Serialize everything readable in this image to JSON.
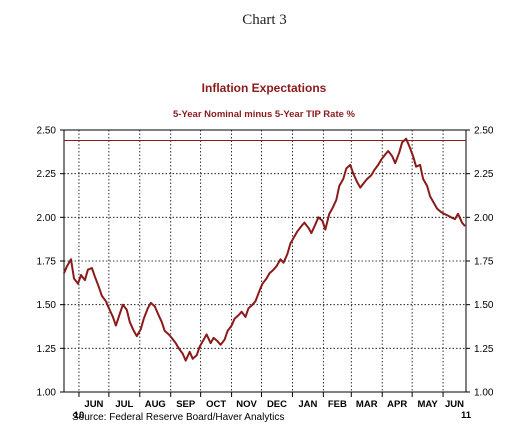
{
  "page": {
    "title": "Chart 3"
  },
  "chart_data": {
    "type": "line",
    "title": "Inflation Expectations",
    "subtitle": "5-Year Nominal minus 5-Year TIP Rate    %",
    "source": "Source:  Federal Reserve Board/Haver Analytics",
    "xlabel": "",
    "ylabel": "",
    "ylim": [
      1.0,
      2.5
    ],
    "yticks": [
      "2.50",
      "2.25",
      "2.00",
      "1.75",
      "1.50",
      "1.25",
      "1.00"
    ],
    "ytick_values": [
      2.5,
      2.25,
      2.0,
      1.75,
      1.5,
      1.25,
      1.0
    ],
    "xrange": [
      "2010-05-17",
      "2011-06-24"
    ],
    "months": [
      "JUN",
      "JUL",
      "AUG",
      "SEP",
      "OCT",
      "NOV",
      "DEC",
      "JAN",
      "FEB",
      "MAR",
      "APR",
      "MAY",
      "JUN"
    ],
    "month_starts": [
      "2010-06-01",
      "2010-07-01",
      "2010-08-01",
      "2010-09-01",
      "2010-10-01",
      "2010-11-01",
      "2010-12-01",
      "2011-01-01",
      "2011-02-01",
      "2011-03-01",
      "2011-04-01",
      "2011-05-01",
      "2011-06-01"
    ],
    "year_labels": [
      {
        "label": "10",
        "date": "2010-06-01"
      },
      {
        "label": "11",
        "date": "2011-06-30"
      }
    ],
    "reference_line": {
      "value": 2.44,
      "color": "#8b1a1a"
    },
    "grid": true,
    "colors": {
      "series": "#8b1a1a"
    },
    "series": [
      {
        "x": [
          "2010-05-17",
          "2010-05-20",
          "2010-05-24",
          "2010-05-27",
          "2010-05-31",
          "2010-06-03",
          "2010-06-07",
          "2010-06-10",
          "2010-06-14",
          "2010-06-17",
          "2010-06-21",
          "2010-06-24",
          "2010-06-28",
          "2010-07-01",
          "2010-07-05",
          "2010-07-08",
          "2010-07-12",
          "2010-07-15",
          "2010-07-19",
          "2010-07-22",
          "2010-07-26",
          "2010-07-29",
          "2010-08-02",
          "2010-08-05",
          "2010-08-09",
          "2010-08-12",
          "2010-08-16",
          "2010-08-19",
          "2010-08-23",
          "2010-08-26",
          "2010-08-30",
          "2010-09-02",
          "2010-09-06",
          "2010-09-09",
          "2010-09-13",
          "2010-09-16",
          "2010-09-20",
          "2010-09-23",
          "2010-09-27",
          "2010-09-30",
          "2010-10-04",
          "2010-10-07",
          "2010-10-11",
          "2010-10-14",
          "2010-10-18",
          "2010-10-21",
          "2010-10-25",
          "2010-10-28",
          "2010-11-01",
          "2010-11-04",
          "2010-11-08",
          "2010-11-11",
          "2010-11-15",
          "2010-11-18",
          "2010-11-22",
          "2010-11-25",
          "2010-11-29",
          "2010-12-02",
          "2010-12-06",
          "2010-12-09",
          "2010-12-13",
          "2010-12-16",
          "2010-12-20",
          "2010-12-23",
          "2010-12-27",
          "2010-12-30",
          "2011-01-03",
          "2011-01-06",
          "2011-01-10",
          "2011-01-13",
          "2011-01-17",
          "2011-01-20",
          "2011-01-24",
          "2011-01-27",
          "2011-01-31",
          "2011-02-03",
          "2011-02-07",
          "2011-02-10",
          "2011-02-14",
          "2011-02-17",
          "2011-02-21",
          "2011-02-24",
          "2011-02-28",
          "2011-03-03",
          "2011-03-07",
          "2011-03-10",
          "2011-03-14",
          "2011-03-17",
          "2011-03-21",
          "2011-03-24",
          "2011-03-28",
          "2011-03-31",
          "2011-04-04",
          "2011-04-07",
          "2011-04-11",
          "2011-04-14",
          "2011-04-18",
          "2011-04-21",
          "2011-04-25",
          "2011-04-28",
          "2011-05-02",
          "2011-05-05",
          "2011-05-09",
          "2011-05-12",
          "2011-05-16",
          "2011-05-19",
          "2011-05-23",
          "2011-05-26",
          "2011-05-30",
          "2011-06-02",
          "2011-06-06",
          "2011-06-09",
          "2011-06-13",
          "2011-06-16",
          "2011-06-20",
          "2011-06-23"
        ],
        "y": [
          1.68,
          1.72,
          1.76,
          1.65,
          1.62,
          1.67,
          1.64,
          1.7,
          1.71,
          1.66,
          1.6,
          1.55,
          1.52,
          1.48,
          1.43,
          1.38,
          1.45,
          1.5,
          1.47,
          1.4,
          1.35,
          1.32,
          1.36,
          1.42,
          1.48,
          1.51,
          1.49,
          1.45,
          1.4,
          1.35,
          1.33,
          1.31,
          1.28,
          1.25,
          1.22,
          1.18,
          1.23,
          1.19,
          1.21,
          1.26,
          1.3,
          1.33,
          1.28,
          1.31,
          1.29,
          1.27,
          1.3,
          1.35,
          1.38,
          1.42,
          1.44,
          1.46,
          1.43,
          1.48,
          1.5,
          1.52,
          1.58,
          1.62,
          1.65,
          1.68,
          1.7,
          1.72,
          1.76,
          1.74,
          1.79,
          1.85,
          1.89,
          1.92,
          1.95,
          1.97,
          1.94,
          1.91,
          1.96,
          2.0,
          1.98,
          1.93,
          2.02,
          2.05,
          2.1,
          2.18,
          2.22,
          2.28,
          2.3,
          2.25,
          2.2,
          2.17,
          2.2,
          2.22,
          2.24,
          2.27,
          2.3,
          2.33,
          2.36,
          2.38,
          2.35,
          2.31,
          2.37,
          2.43,
          2.45,
          2.41,
          2.35,
          2.29,
          2.3,
          2.22,
          2.18,
          2.12,
          2.08,
          2.05,
          2.03,
          2.02,
          2.01,
          2.0,
          1.99,
          2.02,
          1.97,
          1.95
        ]
      }
    ]
  }
}
